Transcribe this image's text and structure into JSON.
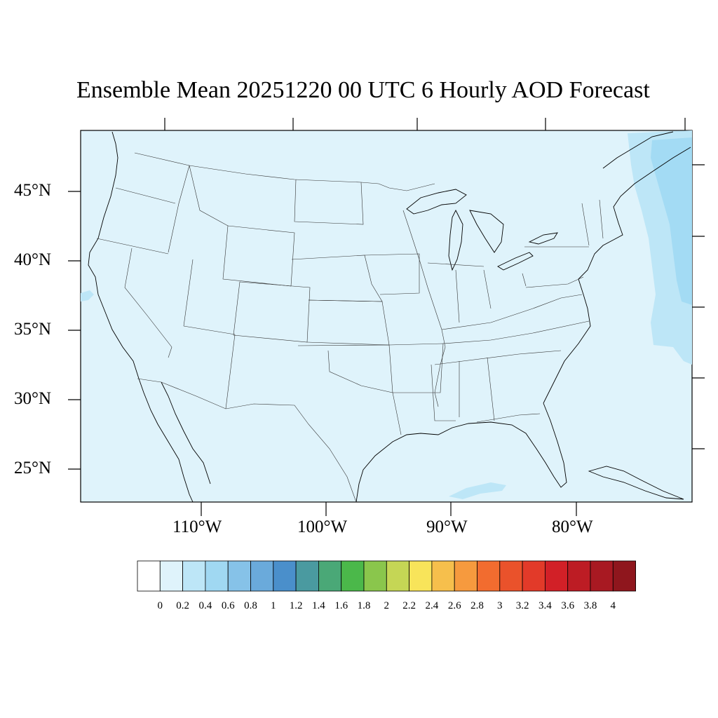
{
  "title": "Ensemble Mean 20251220 00 UTC 6 Hourly AOD Forecast",
  "map": {
    "projection": "lambert-conformal",
    "domain": "contiguous-us",
    "background_level_color": "#dff3fb",
    "latitude_labels": [
      "45°N",
      "40°N",
      "35°N",
      "30°N",
      "25°N"
    ],
    "longitude_labels": [
      "110°W",
      "100°W",
      "90°W",
      "80°W"
    ],
    "features": [
      {
        "name": "atlantic-aod-plume",
        "level": "0.4-0.6",
        "color": "#a3dbf4"
      },
      {
        "name": "gulf-of-mexico-patch",
        "level": "0.2-0.4",
        "color": "#bde6f7"
      },
      {
        "name": "pacific-patch",
        "level": "0.2-0.4",
        "color": "#bde6f7"
      }
    ]
  },
  "colorbar": {
    "colors": [
      "#ffffff",
      "#dff3fb",
      "#bde6f7",
      "#a0d8f2",
      "#86c2e8",
      "#6aaadb",
      "#4a8fcb",
      "#4a9aa0",
      "#4aa877",
      "#4bb84a",
      "#8ac64c",
      "#c5d655",
      "#f8e45a",
      "#f6bf4c",
      "#f69a3e",
      "#f26c2f",
      "#ea522b",
      "#e23a29",
      "#d22027",
      "#bd1c24",
      "#a81922",
      "#8f161d"
    ],
    "labels": [
      "0",
      "0.2",
      "0.4",
      "0.6",
      "0.8",
      "1",
      "1.2",
      "1.4",
      "1.6",
      "1.8",
      "2",
      "2.2",
      "2.4",
      "2.6",
      "2.8",
      "3",
      "3.2",
      "3.4",
      "3.6",
      "3.8",
      "4"
    ]
  }
}
